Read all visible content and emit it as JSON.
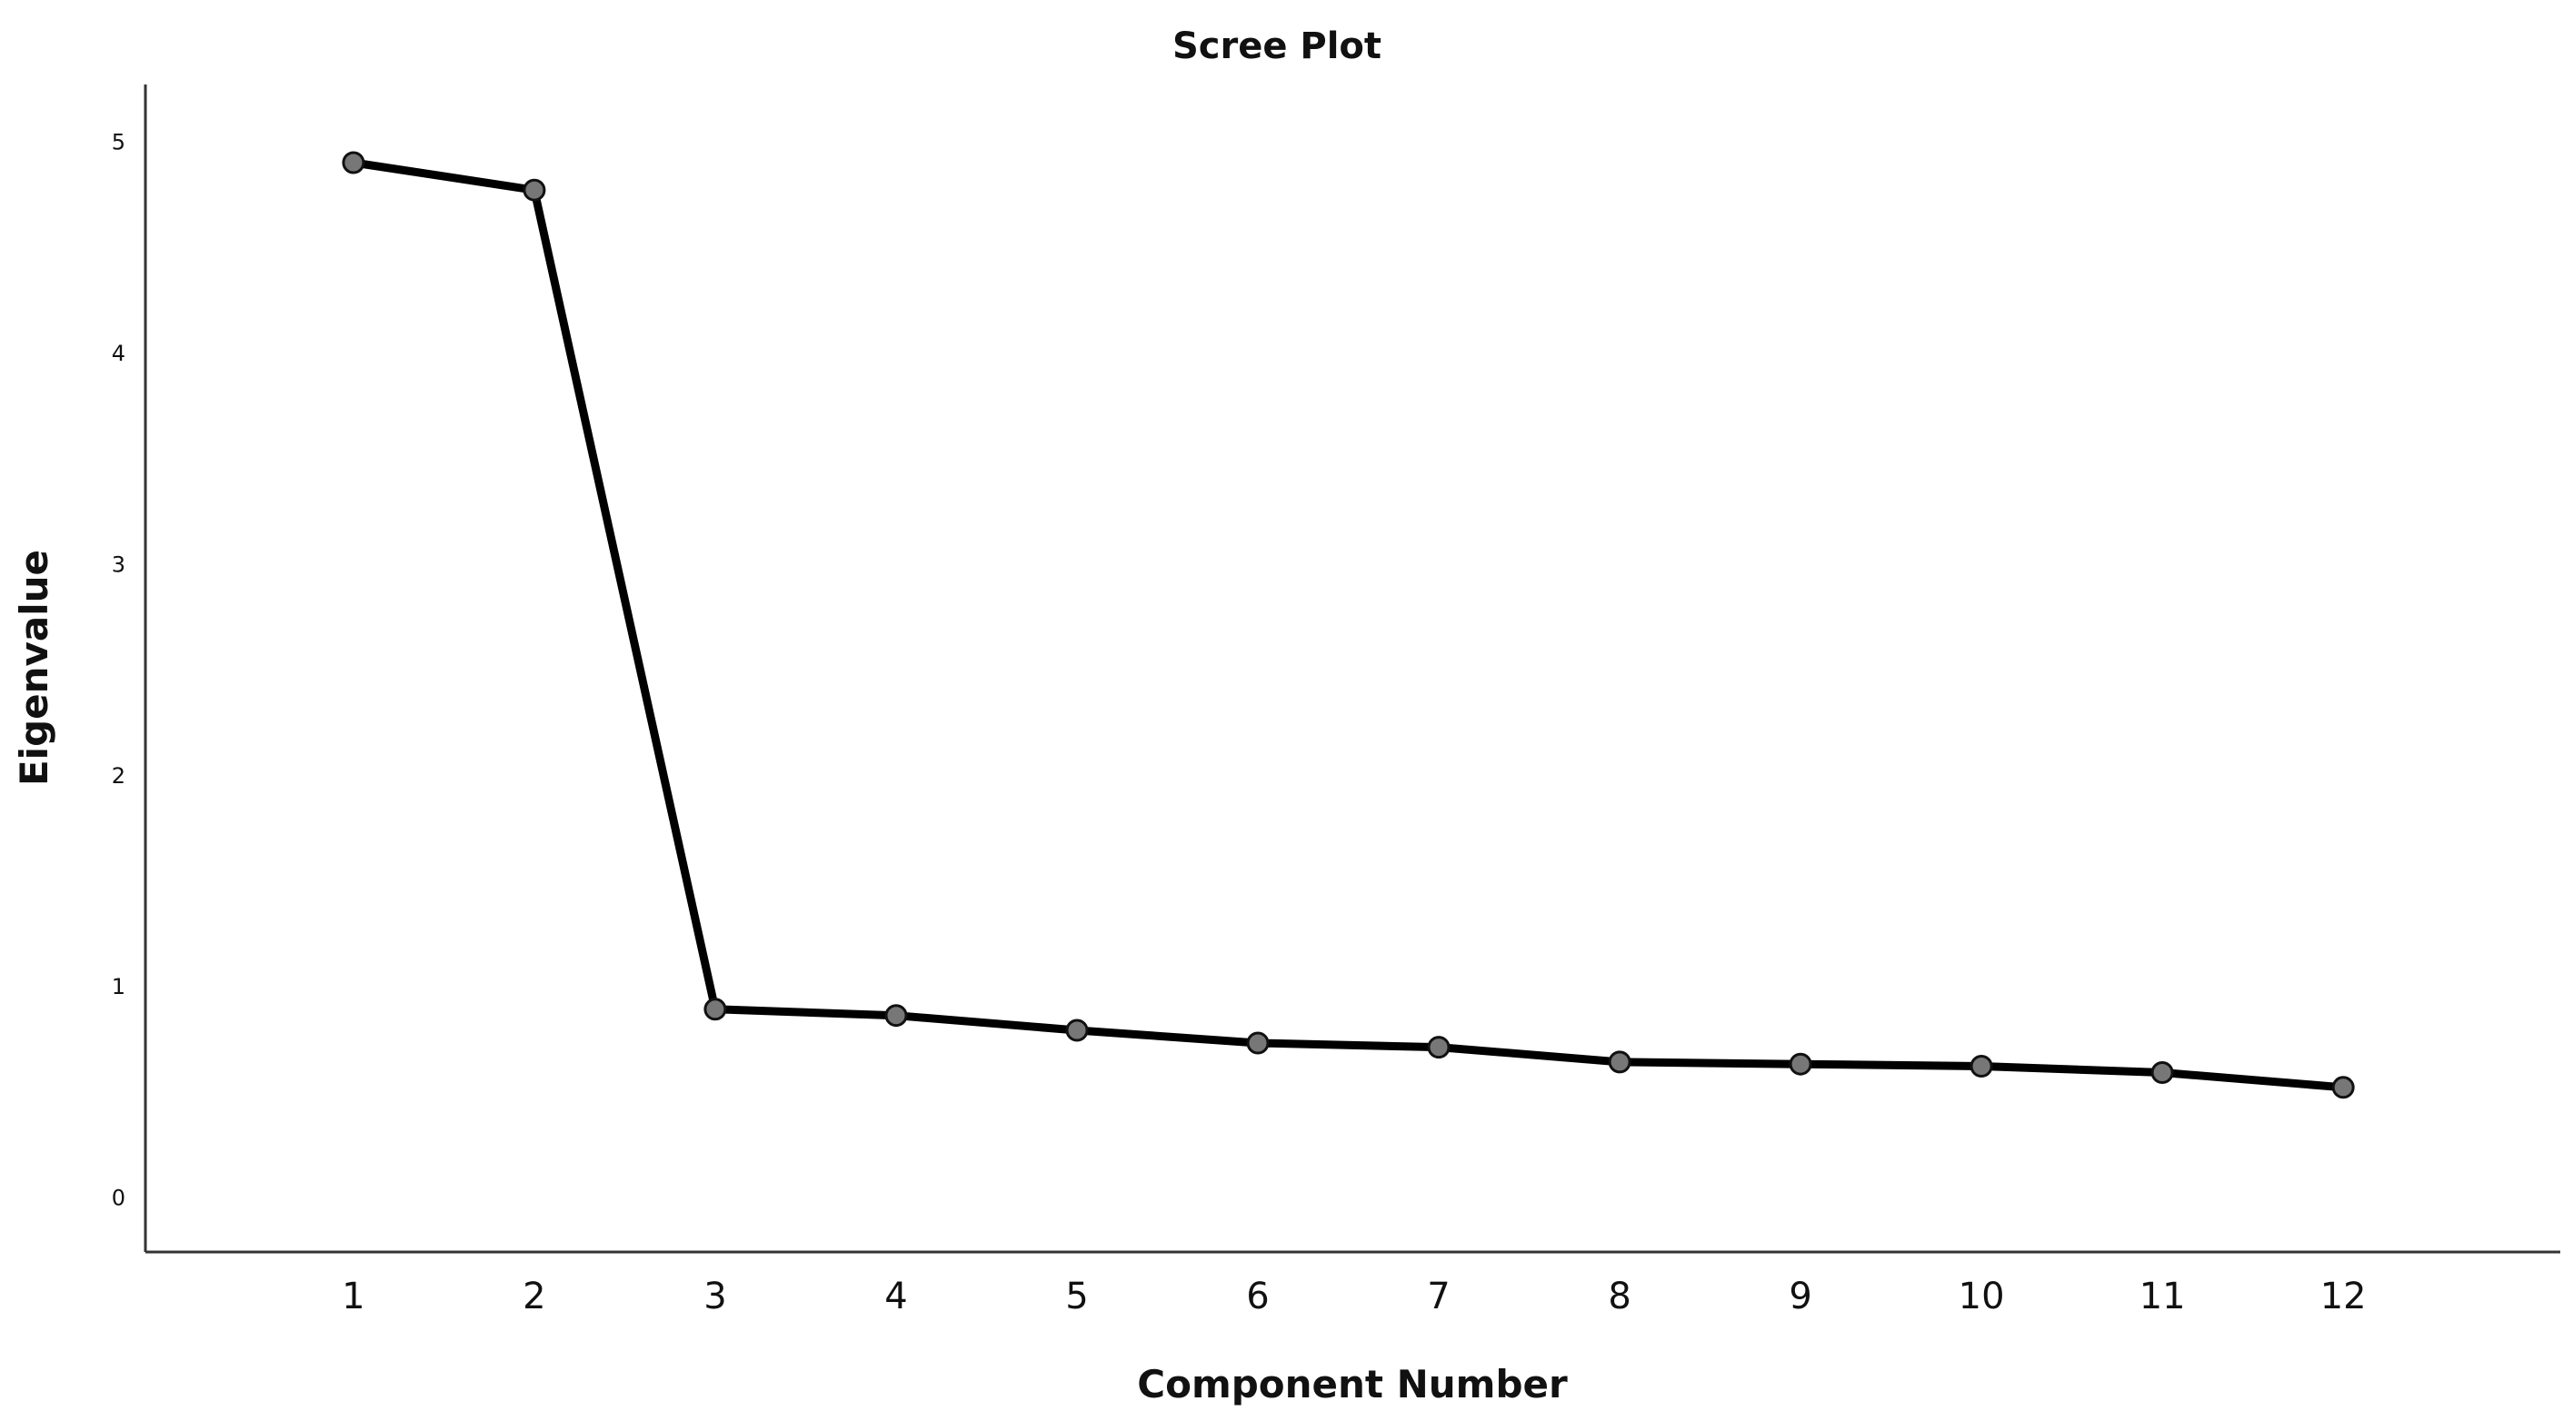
{
  "chart_data": {
    "type": "line",
    "title": "Scree Plot",
    "xlabel": "Component Number",
    "ylabel": "Eigenvalue",
    "x": [
      1,
      2,
      3,
      4,
      5,
      6,
      7,
      8,
      9,
      10,
      11,
      12
    ],
    "x_tick_labels": [
      "1",
      "2",
      "3",
      "4",
      "5",
      "6",
      "7",
      "8",
      "9",
      "10",
      "11",
      "12"
    ],
    "y_ticks": [
      0,
      1,
      2,
      3,
      4,
      5
    ],
    "y_tick_labels": [
      "0",
      "1",
      "2",
      "3",
      "4",
      "5"
    ],
    "ylim": [
      -0.26,
      5.27
    ],
    "xlim": [
      -0.15,
      13.2
    ],
    "grid": false,
    "legend": "none",
    "series": [
      {
        "values": [
          4.9,
          4.77,
          0.89,
          0.86,
          0.79,
          0.73,
          0.71,
          0.64,
          0.63,
          0.62,
          0.59,
          0.52
        ],
        "line_color": "#000000",
        "marker_fill": "#777777",
        "marker_stroke": "#111111",
        "marker": "circle"
      }
    ]
  }
}
